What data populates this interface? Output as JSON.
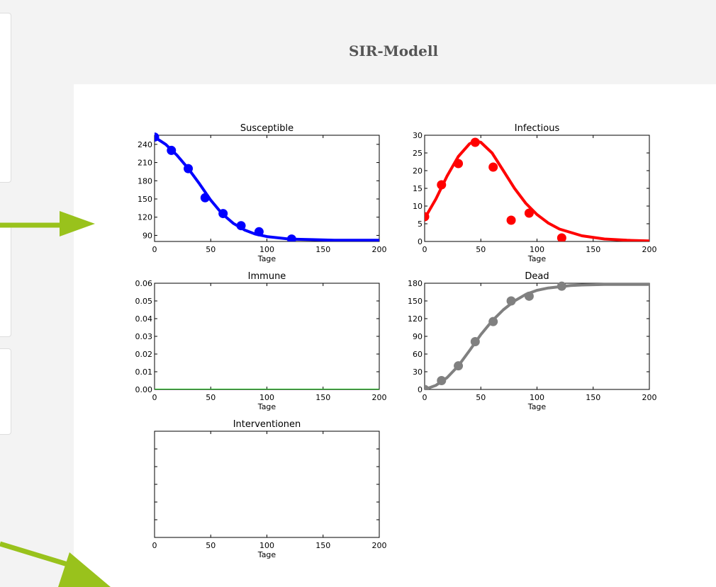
{
  "page": {
    "title": "SIR-Modell"
  },
  "chart_data": [
    {
      "type": "line",
      "title": "Susceptible",
      "xlabel": "Tage",
      "ylabel": "",
      "xlim": [
        0,
        200
      ],
      "ylim": [
        80,
        255
      ],
      "xticks": [
        0,
        50,
        100,
        150,
        200
      ],
      "yticks": [
        90,
        120,
        150,
        180,
        210,
        240
      ],
      "color": "#0000ff",
      "series": [
        {
          "kind": "curve",
          "x": [
            0,
            10,
            20,
            30,
            40,
            50,
            60,
            70,
            80,
            90,
            100,
            110,
            120,
            140,
            160,
            180,
            200
          ],
          "y": [
            252,
            240,
            222,
            200,
            175,
            148,
            126,
            110,
            99,
            92,
            88,
            86,
            84,
            83,
            82,
            82,
            82
          ]
        },
        {
          "kind": "points",
          "x": [
            0,
            15,
            30,
            45,
            61,
            77,
            93,
            122
          ],
          "y": [
            252,
            230,
            200,
            152,
            126,
            106,
            96,
            84
          ]
        }
      ]
    },
    {
      "type": "line",
      "title": "Infectious",
      "xlabel": "Tage",
      "ylabel": "",
      "xlim": [
        0,
        200
      ],
      "ylim": [
        0,
        30
      ],
      "xticks": [
        0,
        50,
        100,
        150,
        200
      ],
      "yticks": [
        0,
        5,
        10,
        15,
        20,
        25,
        30
      ],
      "color": "#ff0000",
      "series": [
        {
          "kind": "curve",
          "x": [
            0,
            10,
            20,
            30,
            40,
            45,
            50,
            60,
            70,
            80,
            90,
            100,
            110,
            120,
            140,
            160,
            180,
            200
          ],
          "y": [
            6.5,
            12,
            18.5,
            24,
            27.6,
            28.4,
            28,
            25,
            20,
            15,
            10.8,
            7.6,
            5.2,
            3.5,
            1.6,
            0.7,
            0.35,
            0.15
          ]
        },
        {
          "kind": "points",
          "x": [
            0,
            15,
            30,
            45,
            61,
            77,
            93,
            122
          ],
          "y": [
            7,
            16,
            22,
            28,
            21,
            6,
            8,
            1
          ]
        }
      ]
    },
    {
      "type": "line",
      "title": "Immune",
      "xlabel": "Tage",
      "ylabel": "",
      "xlim": [
        0,
        200
      ],
      "ylim": [
        0,
        0.06
      ],
      "xticks": [
        0,
        50,
        100,
        150,
        200
      ],
      "yticks": [
        "0.00",
        "0.01",
        "0.02",
        "0.03",
        "0.04",
        "0.05",
        "0.06"
      ],
      "color": "#00aa00",
      "series": [
        {
          "kind": "curve",
          "x": [
            0,
            200
          ],
          "y": [
            0,
            0
          ]
        }
      ]
    },
    {
      "type": "line",
      "title": "Dead",
      "xlabel": "Tage",
      "ylabel": "",
      "xlim": [
        0,
        200
      ],
      "ylim": [
        0,
        180
      ],
      "xticks": [
        0,
        50,
        100,
        150,
        200
      ],
      "yticks": [
        0,
        30,
        60,
        90,
        120,
        150,
        180
      ],
      "color": "#808080",
      "series": [
        {
          "kind": "curve",
          "x": [
            0,
            10,
            20,
            30,
            40,
            50,
            60,
            70,
            80,
            90,
            100,
            110,
            120,
            130,
            140,
            150,
            160,
            180,
            200
          ],
          "y": [
            0,
            7,
            20,
            40,
            66,
            93,
            116,
            135,
            150,
            161,
            168,
            172,
            174,
            176,
            177,
            177.5,
            178,
            178,
            178
          ]
        },
        {
          "kind": "points",
          "x": [
            0,
            15,
            30,
            45,
            61,
            77,
            93,
            122
          ],
          "y": [
            0,
            15,
            40,
            81,
            115,
            150,
            158,
            175
          ]
        }
      ]
    },
    {
      "type": "line",
      "title": "Interventionen",
      "xlabel": "Tage",
      "ylabel": "",
      "xlim": [
        0,
        200
      ],
      "ylim": [
        0,
        1
      ],
      "xticks": [
        0,
        50,
        100,
        150,
        200
      ],
      "yticks": [],
      "color": "#000000",
      "series": []
    }
  ],
  "annotations": {
    "arrow_color": "#99c21c"
  }
}
